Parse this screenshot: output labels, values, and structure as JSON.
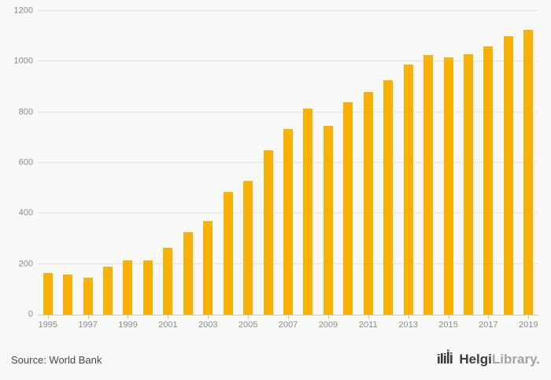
{
  "chart_data": {
    "type": "bar",
    "title": "",
    "xlabel": "",
    "ylabel": "",
    "categories": [
      "1995",
      "1996",
      "1997",
      "1998",
      "1999",
      "2000",
      "2001",
      "2002",
      "2003",
      "2004",
      "2005",
      "2006",
      "2007",
      "2008",
      "2009",
      "2010",
      "2011",
      "2012",
      "2013",
      "2014",
      "2015",
      "2016",
      "2017",
      "2018",
      "2019"
    ],
    "values": [
      165,
      160,
      145,
      190,
      215,
      215,
      265,
      325,
      370,
      485,
      530,
      650,
      735,
      815,
      745,
      840,
      880,
      925,
      990,
      1025,
      1018,
      1030,
      1060,
      1100,
      1125
    ],
    "ylim": [
      0,
      1200
    ],
    "yticks": [
      0,
      200,
      400,
      600,
      800,
      1000,
      1200
    ],
    "xtick_labels": [
      "1995",
      "1997",
      "1999",
      "2001",
      "2003",
      "2005",
      "2007",
      "2009",
      "2011",
      "2013",
      "2015",
      "2017",
      "2019"
    ],
    "xtick_every": 2,
    "bar_color": "#F9B104",
    "grid": true,
    "legend_position": "none"
  },
  "footer": {
    "source_label": "Source: World Bank"
  },
  "logo": {
    "brand_bold": "Helgi",
    "brand_light": "Library",
    "suffix": "."
  }
}
